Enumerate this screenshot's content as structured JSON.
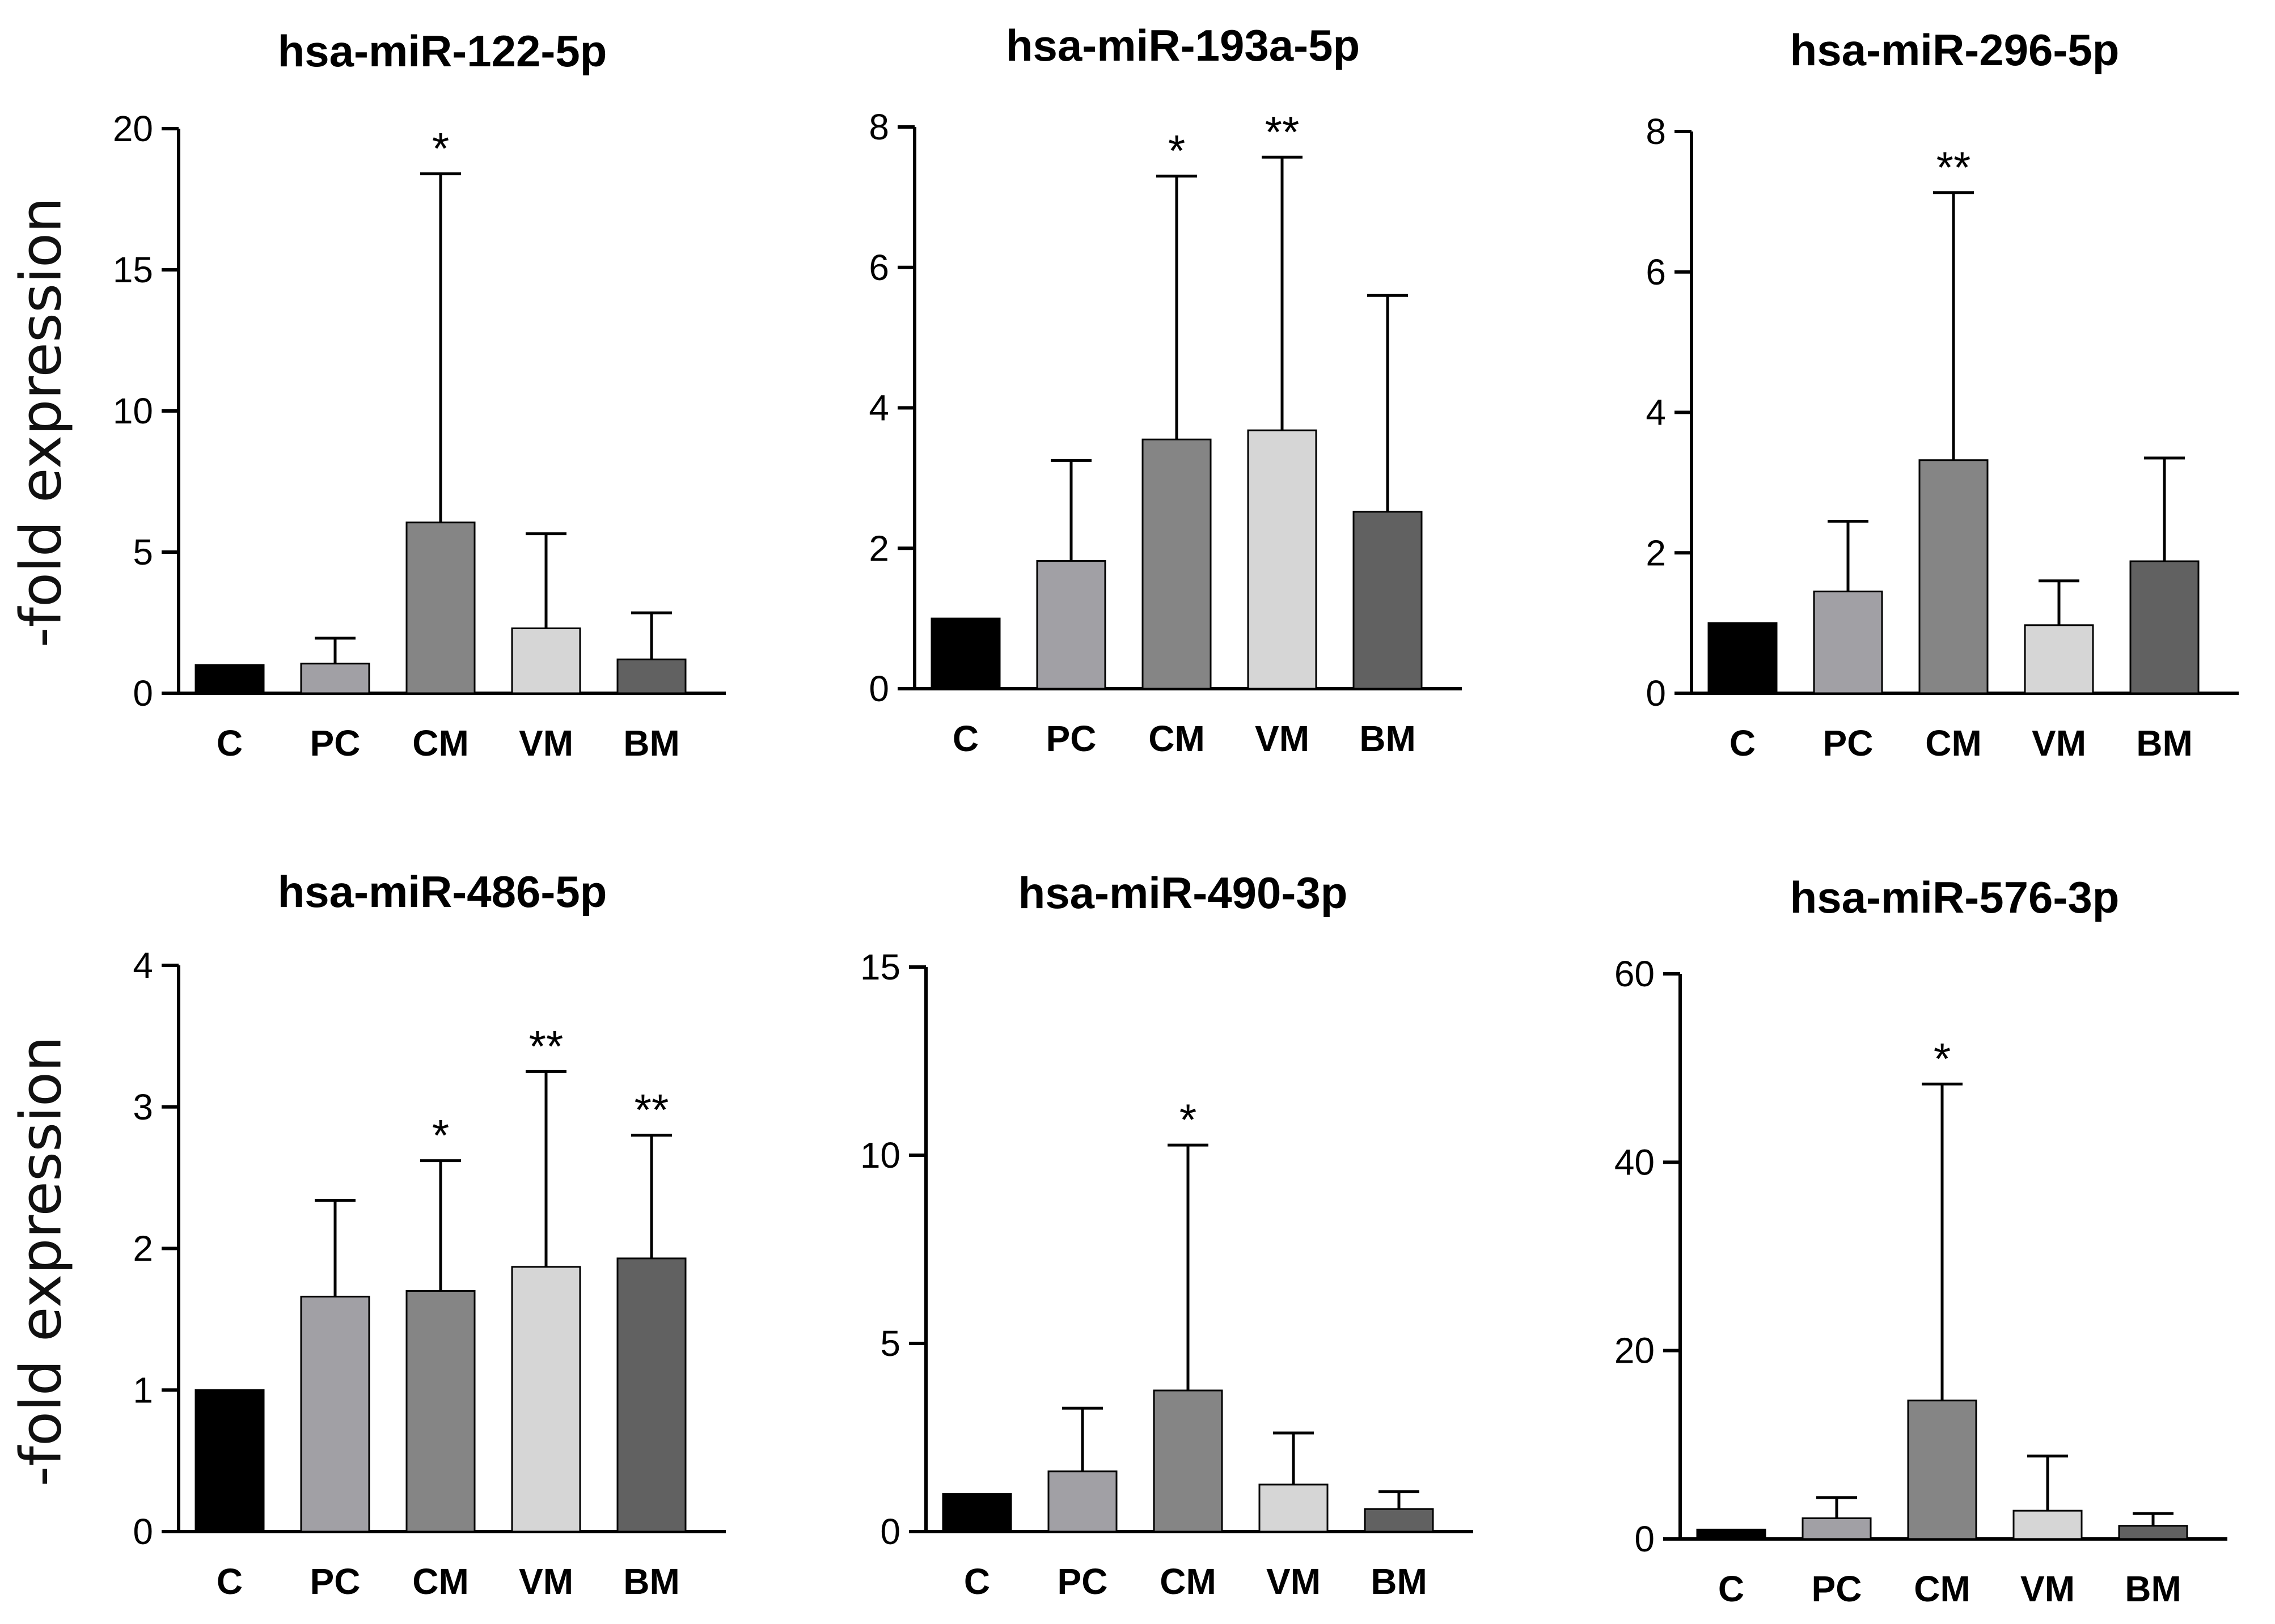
{
  "figure": {
    "ylabel": "-fold expression",
    "group_colors": {
      "C": "#000000",
      "PC": "#a1a0a5",
      "CM": "#858585",
      "VM": "#d6d6d6",
      "BM": "#616161"
    }
  },
  "chart_data": [
    {
      "type": "bar",
      "title": "hsa-miR-122-5p",
      "xlabel": "",
      "ylabel": "-fold expression",
      "categories": [
        "C",
        "PC",
        "CM",
        "VM",
        "BM"
      ],
      "values": [
        1.0,
        1.05,
        6.05,
        2.3,
        1.2
      ],
      "error_upper": [
        1.0,
        1.95,
        18.4,
        5.65,
        2.85
      ],
      "significance": [
        "",
        "",
        "*",
        "",
        ""
      ],
      "ylim": [
        0,
        20
      ],
      "yticks": [
        0,
        5,
        10,
        15,
        20
      ]
    },
    {
      "type": "bar",
      "title": "hsa-miR-193a-5p",
      "xlabel": "",
      "ylabel": "",
      "categories": [
        "C",
        "PC",
        "CM",
        "VM",
        "BM"
      ],
      "values": [
        1.0,
        1.82,
        3.55,
        3.68,
        2.52
      ],
      "error_upper": [
        1.0,
        3.25,
        7.3,
        7.57,
        5.6
      ],
      "significance": [
        "",
        "",
        "*",
        "**",
        ""
      ],
      "ylim": [
        0,
        8
      ],
      "yticks": [
        0,
        2,
        4,
        6,
        8
      ]
    },
    {
      "type": "bar",
      "title": "hsa-miR-296-5p",
      "xlabel": "",
      "ylabel": "",
      "categories": [
        "C",
        "PC",
        "CM",
        "VM",
        "BM"
      ],
      "values": [
        1.0,
        1.45,
        3.32,
        0.97,
        1.88
      ],
      "error_upper": [
        1.0,
        2.45,
        7.13,
        1.6,
        3.35
      ],
      "significance": [
        "",
        "",
        "**",
        "",
        ""
      ],
      "ylim": [
        0,
        8
      ],
      "yticks": [
        0,
        2,
        4,
        6,
        8
      ]
    },
    {
      "type": "bar",
      "title": "hsa-miR-486-5p",
      "xlabel": "",
      "ylabel": "-fold expression",
      "categories": [
        "C",
        "PC",
        "CM",
        "VM",
        "BM"
      ],
      "values": [
        1.0,
        1.66,
        1.7,
        1.87,
        1.93
      ],
      "error_upper": [
        1.0,
        2.34,
        2.62,
        3.25,
        2.8
      ],
      "significance": [
        "",
        "",
        "*",
        "**",
        "**"
      ],
      "ylim": [
        0,
        4
      ],
      "yticks": [
        0,
        1,
        2,
        3,
        4
      ]
    },
    {
      "type": "bar",
      "title": "hsa-miR-490-3p",
      "xlabel": "",
      "ylabel": "",
      "categories": [
        "C",
        "PC",
        "CM",
        "VM",
        "BM"
      ],
      "values": [
        1.0,
        1.6,
        3.75,
        1.25,
        0.6
      ],
      "error_upper": [
        1.0,
        3.28,
        10.27,
        2.62,
        1.06
      ],
      "significance": [
        "",
        "",
        "*",
        "",
        ""
      ],
      "ylim": [
        0,
        15
      ],
      "yticks": [
        0,
        5,
        10,
        15
      ]
    },
    {
      "type": "bar",
      "title": "hsa-miR-576-3p",
      "xlabel": "",
      "ylabel": "",
      "categories": [
        "C",
        "PC",
        "CM",
        "VM",
        "BM"
      ],
      "values": [
        1.0,
        2.2,
        14.7,
        3.0,
        1.4
      ],
      "error_upper": [
        1.0,
        4.4,
        48.3,
        8.8,
        2.7
      ],
      "significance": [
        "",
        "",
        "*",
        "",
        ""
      ],
      "ylim": [
        0,
        60
      ],
      "yticks": [
        0,
        20,
        40,
        60
      ]
    }
  ]
}
